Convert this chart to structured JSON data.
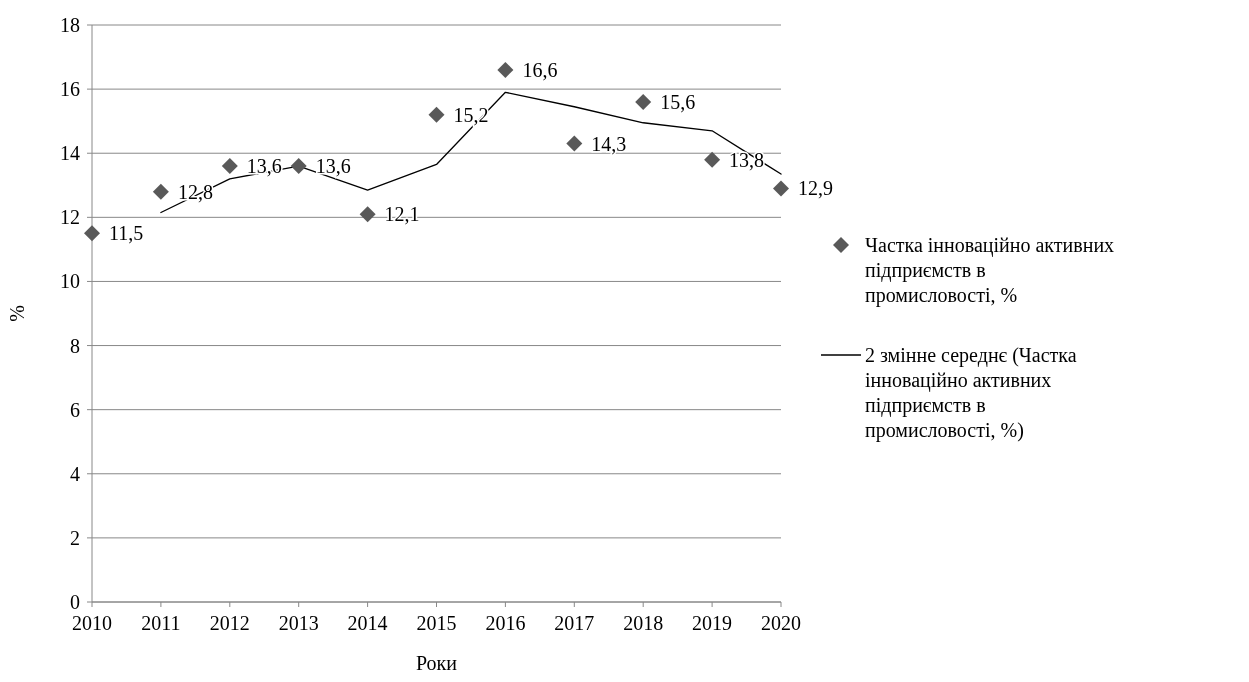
{
  "chart_data": {
    "type": "scatter",
    "xlabel": "Роки",
    "ylabel": "%",
    "x": [
      2010,
      2011,
      2012,
      2013,
      2014,
      2015,
      2016,
      2017,
      2018,
      2019,
      2020
    ],
    "xlim": [
      2010,
      2020
    ],
    "xticks": [
      2010,
      2011,
      2012,
      2013,
      2014,
      2015,
      2016,
      2017,
      2018,
      2019,
      2020
    ],
    "ylim": [
      0,
      18
    ],
    "yticks": [
      0,
      2,
      4,
      6,
      8,
      10,
      12,
      14,
      16,
      18
    ],
    "grid": "y",
    "legend": "right",
    "series": [
      {
        "name": "Частка інноваційно активних підприємств в промисловості, %",
        "marker": "diamond",
        "color": "#595959",
        "values": [
          11.5,
          12.8,
          13.6,
          13.6,
          12.1,
          15.2,
          16.6,
          14.3,
          15.6,
          13.8,
          12.9
        ],
        "value_labels": [
          "11,5",
          "12,8",
          "13,6",
          "13,6",
          "12,1",
          "15,2",
          "16,6",
          "14,3",
          "15,6",
          "13,8",
          "12,9"
        ]
      },
      {
        "name": "2 змінне середнє (Частка інноваційно активних підприємств в промисловості, %)",
        "type": "line",
        "marker": "none",
        "line_style": "solid",
        "color": "#000000",
        "values": [
          null,
          12.15,
          13.2,
          13.6,
          12.85,
          13.65,
          15.9,
          15.45,
          14.95,
          14.7,
          13.35
        ]
      }
    ]
  }
}
